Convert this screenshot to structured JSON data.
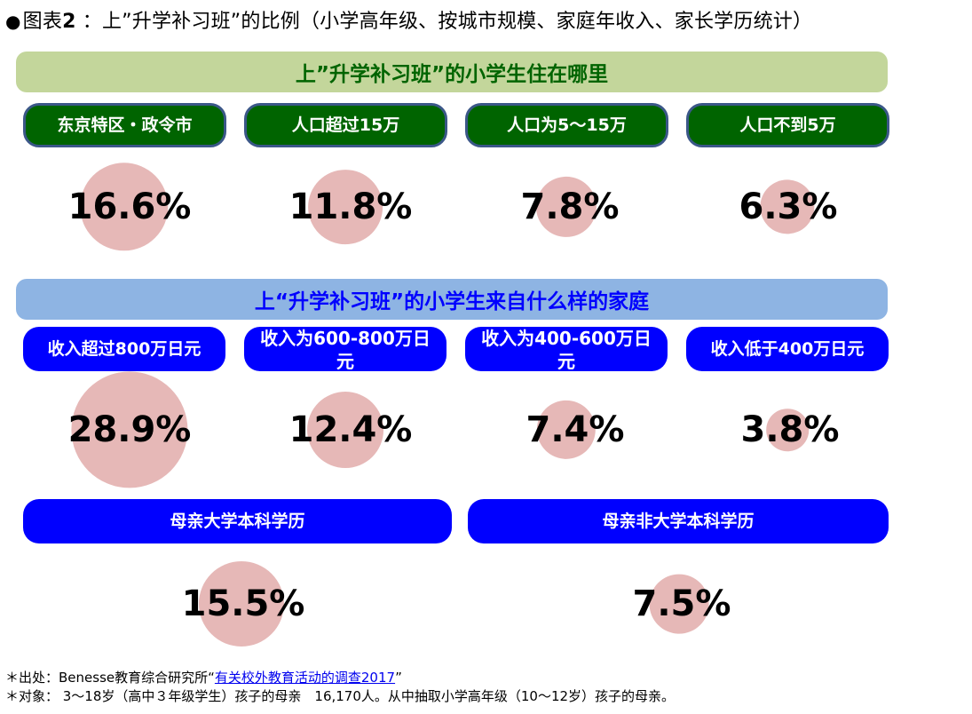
{
  "title": {
    "bullet": "●",
    "prefix": "图表",
    "number": "2",
    "text": " ：上”升学补习班”的比例（小学高年级、按城市规模、家庭年收入、家长学历统计）"
  },
  "sections": [
    {
      "label": "上”升学补习班”的小学生住在哪里"
    },
    {
      "label": "上“升学补习班”的小学生来自什么样的家庭"
    }
  ],
  "chart_data": {
    "type": "bubble",
    "unit": "%",
    "groups": [
      {
        "categories": [
          "东京特区・政令市",
          "人口超过15万",
          "人口为5～15万",
          "人口不到5万"
        ],
        "values": [
          16.6,
          11.8,
          7.8,
          6.3
        ],
        "labels": [
          "16.6%",
          "11.8%",
          "7.8%",
          "6.3%"
        ]
      },
      {
        "categories": [
          "收入超过800万日元",
          "收入为600-800万日元",
          "收入为400-600万日元",
          "收入低于400万日元"
        ],
        "values": [
          28.9,
          12.4,
          7.4,
          3.8
        ],
        "labels": [
          "28.9%",
          "12.4%",
          "7.4%",
          "3.8%"
        ]
      },
      {
        "categories": [
          "母亲大学本科学历",
          "母亲非大学本科学历"
        ],
        "values": [
          15.5,
          7.5
        ],
        "labels": [
          "15.5%",
          "7.5%"
        ]
      }
    ],
    "colors": {
      "bubble": "#e6b8b7",
      "group1_pill": "#006400",
      "group1_pill_border": "#3b5788",
      "group2_pill": "#0000ff",
      "section1_bar": "#c3d69b",
      "section1_text": "#006400",
      "section2_bar": "#8eb4e3",
      "section2_text": "#0000ff"
    }
  },
  "footnotes": {
    "source_prefix": "＊出处：Benesse教育综合研究所“",
    "source_link": "有关校外教育活动的调查2017",
    "source_suffix": "”",
    "subject": "＊对象： 3～18岁（高中３年级学生）孩子的母亲　16,170人。从中抽取小学高年级（10～12岁）孩子的母亲。"
  }
}
